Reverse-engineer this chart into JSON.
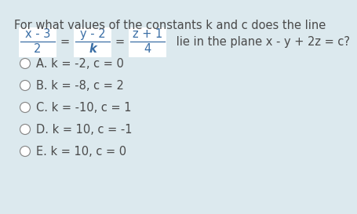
{
  "bg_color": "#dce9ee",
  "text_color": "#3a6ea5",
  "dark_text": "#4a4a4a",
  "title_line1": "For what values of the constants k and c does the line",
  "equation_suffix": " lie in the plane x - y + 2z = c?",
  "fraction1_num": "x - 3",
  "fraction1_den": "2",
  "fraction2_num": "y - 2",
  "fraction2_den": "k",
  "fraction3_num": "z + 1",
  "fraction3_den": "4",
  "options": [
    "A. k = -2, c = 0",
    "B. k = -8, c = 2",
    "C. k = -10, c = 1",
    "D. k = 10, c = -1",
    "E. k = 10, c = 0"
  ],
  "font_size": 10.5,
  "option_font_size": 10.5
}
